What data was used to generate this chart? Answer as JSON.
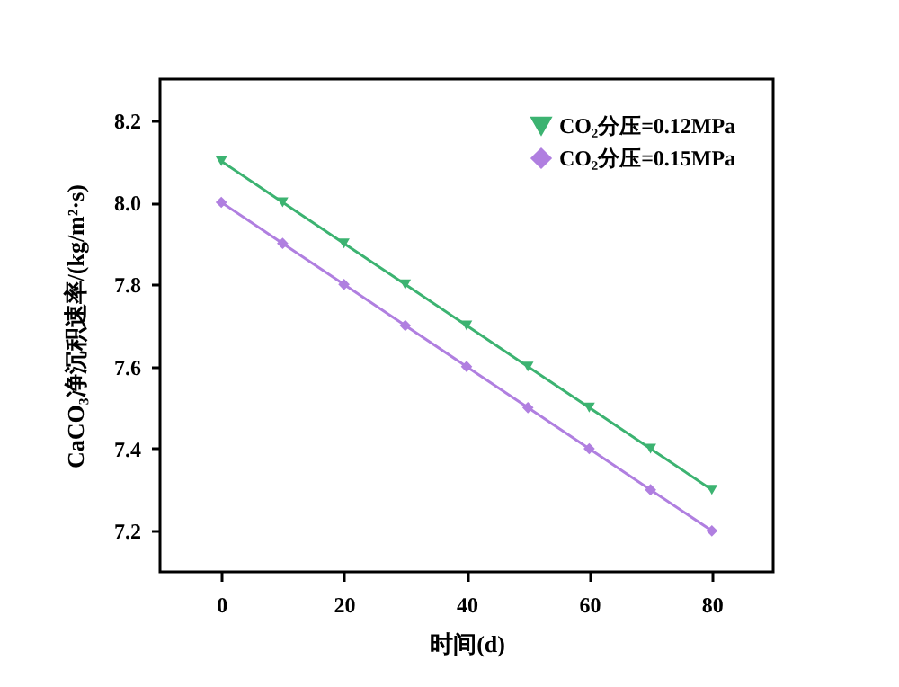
{
  "chart_data": {
    "type": "line",
    "xlabel": "时间(d)",
    "ylabel": "CaCO₃净沉积速率/(kg/m²·s)",
    "x": [
      0,
      10,
      20,
      30,
      40,
      50,
      60,
      70,
      80
    ],
    "series": [
      {
        "name": "CO₂分压=0.12MPa",
        "color": "#3cb371",
        "marker": "triangle",
        "values": [
          8.1,
          8.0,
          7.9,
          7.8,
          7.7,
          7.6,
          7.5,
          7.4,
          7.3
        ]
      },
      {
        "name": "CO₂分压=0.15MPa",
        "color": "#b07fe0",
        "marker": "diamond",
        "values": [
          8.0,
          7.9,
          7.8,
          7.7,
          7.6,
          7.5,
          7.4,
          7.3,
          7.2
        ]
      }
    ],
    "xlim": [
      -10,
      90
    ],
    "xticks": [
      0,
      20,
      40,
      60,
      80
    ],
    "ylim": [
      7.1,
      8.3
    ],
    "yticks": [
      7.2,
      7.4,
      7.6,
      7.8,
      {
        "value": 8,
        "label": "8.0"
      },
      8.2
    ],
    "grid": false,
    "legend": "top right",
    "line_style": "solid"
  }
}
